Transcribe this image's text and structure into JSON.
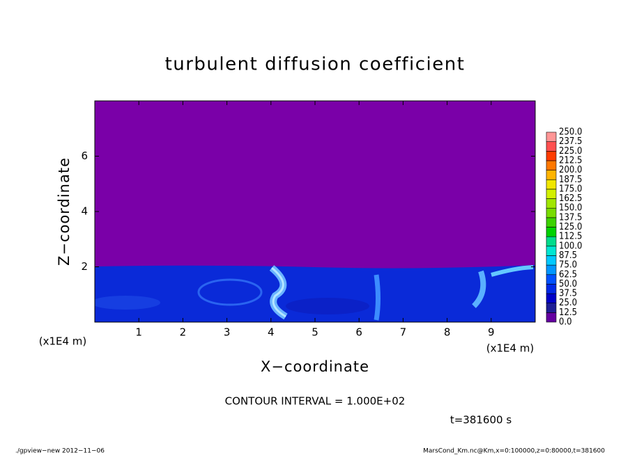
{
  "chart_data": {
    "type": "contour",
    "title": "turbulent diffusion coefficient",
    "x_label": "X−coordinate",
    "y_label": "Z−coordinate",
    "x_unit": "(x1E4 m)",
    "y_unit": "(x1E4 m)",
    "xlim": [
      0,
      10
    ],
    "ylim": [
      0,
      8
    ],
    "xticks": [
      1,
      2,
      3,
      4,
      5,
      6,
      7,
      8,
      9
    ],
    "yticks": [
      2,
      4,
      6
    ],
    "levels": [
      {
        "value": 0,
        "label": "0.0"
      },
      {
        "value": 12.5,
        "label": "12.5"
      },
      {
        "value": 25,
        "label": "25.0"
      },
      {
        "value": 37.5,
        "label": "37.5"
      },
      {
        "value": 50,
        "label": "50.0"
      },
      {
        "value": 62.5,
        "label": "62.5"
      },
      {
        "value": 75,
        "label": "75.0"
      },
      {
        "value": 87.5,
        "label": "87.5"
      },
      {
        "value": 100,
        "label": "100.0"
      },
      {
        "value": 112.5,
        "label": "112.5"
      },
      {
        "value": 125,
        "label": "125.0"
      },
      {
        "value": 137.5,
        "label": "137.5"
      },
      {
        "value": 150,
        "label": "150.0"
      },
      {
        "value": 162.5,
        "label": "162.5"
      },
      {
        "value": 175,
        "label": "175.0"
      },
      {
        "value": 187.5,
        "label": "187.5"
      },
      {
        "value": 200,
        "label": "200.0"
      },
      {
        "value": 212.5,
        "label": "212.5"
      },
      {
        "value": 225,
        "label": "225.0"
      },
      {
        "value": 237.5,
        "label": "237.5"
      },
      {
        "value": 250,
        "label": "250.0"
      }
    ],
    "level_colors": [
      "#6400a0",
      "#1e1e96",
      "#0000c8",
      "#0028e6",
      "#0050ff",
      "#0096ff",
      "#00c8ff",
      "#00e6d2",
      "#00dc8c",
      "#00d200",
      "#3cd200",
      "#78dc00",
      "#a0e600",
      "#d2f000",
      "#f0e600",
      "#ffb400",
      "#ff7800",
      "#ff3c00",
      "#ff5050",
      "#ff9696"
    ],
    "contour_interval": "CONTOUR INTERVAL = 1.000E+02",
    "time_label": "t=381600 s",
    "footer_left": "./gpview−new  2012−11−06",
    "footer_right": "MarsCond_Km.nc@Km,x=0:100000,z=0:80000,t=381600"
  }
}
